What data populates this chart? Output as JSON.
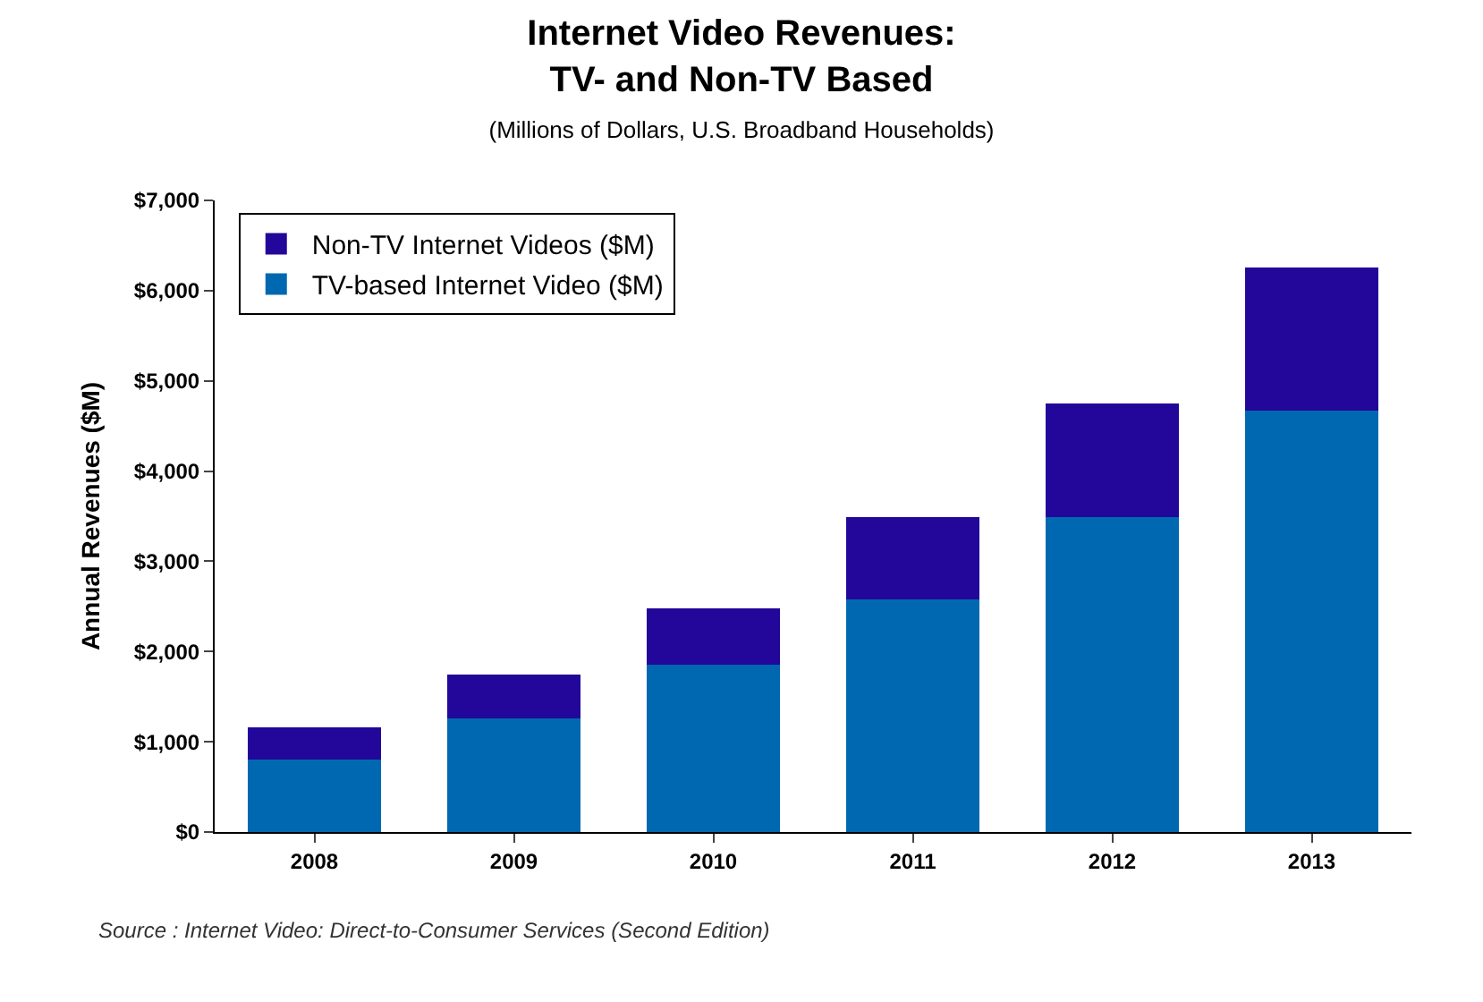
{
  "chart_data": {
    "type": "bar",
    "title": "Internet Video Revenues:\nTV- and Non-TV Based",
    "subtitle": "(Millions of Dollars, U.S. Broadband Households)",
    "ylabel": "Annual Revenues ($M)",
    "categories": [
      "2008",
      "2009",
      "2010",
      "2011",
      "2012",
      "2013"
    ],
    "stacked": true,
    "series": [
      {
        "name": "TV-based Internet Video ($M)",
        "color": "#0068b0",
        "values": [
          800,
          1260,
          1850,
          2580,
          3490,
          4670
        ]
      },
      {
        "name": "Non-TV Internet Videos ($M)",
        "color": "#22079a",
        "values": [
          360,
          490,
          630,
          910,
          1260,
          1590
        ]
      }
    ],
    "ylim": [
      0,
      7000
    ],
    "yticks": [
      {
        "value": 0,
        "label": "$0"
      },
      {
        "value": 1000,
        "label": "$1,000"
      },
      {
        "value": 2000,
        "label": "$2,000"
      },
      {
        "value": 3000,
        "label": "$3,000"
      },
      {
        "value": 4000,
        "label": "$4,000"
      },
      {
        "value": 5000,
        "label": "$5,000"
      },
      {
        "value": 6000,
        "label": "$6,000"
      },
      {
        "value": 7000,
        "label": "$7,000"
      }
    ],
    "grid": false,
    "legend": "top left",
    "annotations": [
      "Source : Internet Video: Direct-to-Consumer Services (Second Edition)"
    ]
  }
}
